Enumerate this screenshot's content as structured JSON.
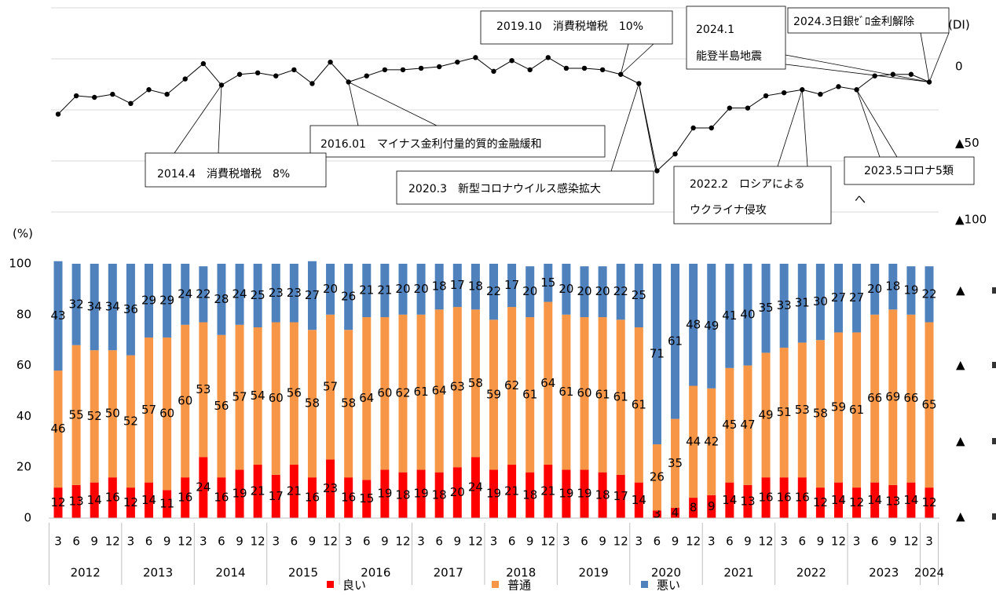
{
  "chart_data": [
    {
      "type": "line",
      "color": "#000000",
      "values": [
        -31,
        -19,
        -20,
        -18,
        -24,
        -15,
        -18,
        -8,
        2,
        -12,
        -5,
        -4,
        -6,
        -2,
        -11,
        3,
        -10,
        -6,
        -2,
        -2,
        -1,
        0,
        3,
        6,
        -3,
        4,
        -2,
        6,
        -1,
        -1,
        -2,
        -5,
        -11,
        -68,
        -57,
        -40,
        -40,
        -27,
        -27,
        -19,
        -17,
        -15,
        -18,
        -13,
        -15,
        -6,
        -5,
        -5,
        -10
      ],
      "ylim": [
        -100,
        40
      ],
      "yticks": [
        {
          "value": 0,
          "label": "0"
        },
        {
          "value": -50,
          "label": "▲50"
        },
        {
          "value": -100,
          "label": "▲100"
        }
      ],
      "y_label": "(DI)",
      "annotations": [
        [
          "2019.10　消費税増税　10%"
        ],
        [
          "2024.1",
          "能登半島地震"
        ],
        [
          "2024.3日銀ｾﾞﾛ金利解除"
        ],
        [
          "2016.01　マイナス金利付量的質的金融緩和"
        ],
        [
          "2014.4　消費税増税　8%"
        ],
        [
          "2020.3　新型コロナウイルス感染拡大"
        ],
        [
          "2022.2　ロシアによる",
          "ウクライナ侵攻"
        ],
        [
          "2023.5コロナ5類",
          "へ"
        ]
      ]
    },
    {
      "type": "bar",
      "stacked": true,
      "categories": [
        "3",
        "6",
        "9",
        "12",
        "3",
        "6",
        "9",
        "12",
        "3",
        "6",
        "9",
        "12",
        "3",
        "6",
        "9",
        "12",
        "3",
        "6",
        "9",
        "12",
        "3",
        "6",
        "9",
        "12",
        "3",
        "6",
        "9",
        "12",
        "3",
        "6",
        "9",
        "12",
        "3",
        "6",
        "9",
        "12",
        "3",
        "6",
        "9",
        "12",
        "3",
        "6",
        "9",
        "12",
        "3",
        "6",
        "9",
        "12",
        "3"
      ],
      "years": [
        "2012",
        "2013",
        "2014",
        "2015",
        "2016",
        "2017",
        "2018",
        "2019",
        "2020",
        "2021",
        "2022",
        "2023",
        "2024"
      ],
      "series": [
        {
          "name": "良い",
          "color": "#ff0000",
          "values": [
            12,
            13,
            14,
            16,
            12,
            14,
            11,
            16,
            24,
            16,
            19,
            21,
            17,
            21,
            16,
            23,
            16,
            15,
            19,
            18,
            19,
            18,
            20,
            24,
            19,
            21,
            18,
            21,
            19,
            19,
            18,
            17,
            14,
            3,
            4,
            8,
            9,
            14,
            13,
            16,
            16,
            16,
            12,
            14,
            12,
            14,
            13,
            14,
            12
          ]
        },
        {
          "name": "普通",
          "color": "#f79646",
          "values": [
            46,
            55,
            52,
            50,
            52,
            57,
            60,
            60,
            53,
            56,
            57,
            54,
            60,
            56,
            58,
            57,
            58,
            64,
            60,
            62,
            61,
            64,
            63,
            58,
            59,
            62,
            61,
            64,
            61,
            60,
            61,
            61,
            61,
            26,
            35,
            44,
            42,
            45,
            47,
            49,
            51,
            53,
            58,
            59,
            61,
            66,
            69,
            66,
            65
          ]
        },
        {
          "name": "悪い",
          "color": "#4f81bd",
          "values": [
            43,
            32,
            34,
            34,
            36,
            29,
            29,
            24,
            22,
            28,
            24,
            25,
            23,
            23,
            27,
            20,
            26,
            21,
            21,
            20,
            20,
            18,
            17,
            18,
            22,
            17,
            20,
            15,
            20,
            20,
            20,
            22,
            25,
            71,
            61,
            48,
            49,
            41,
            40,
            35,
            33,
            31,
            30,
            27,
            27,
            20,
            18,
            19,
            22
          ]
        }
      ],
      "ylim": [
        0,
        100
      ],
      "yticks": [
        0,
        20,
        40,
        60,
        80,
        100
      ],
      "y_label": "(%)",
      "right_labels": [
        "▲",
        "▲",
        "▲",
        "▲"
      ]
    }
  ]
}
